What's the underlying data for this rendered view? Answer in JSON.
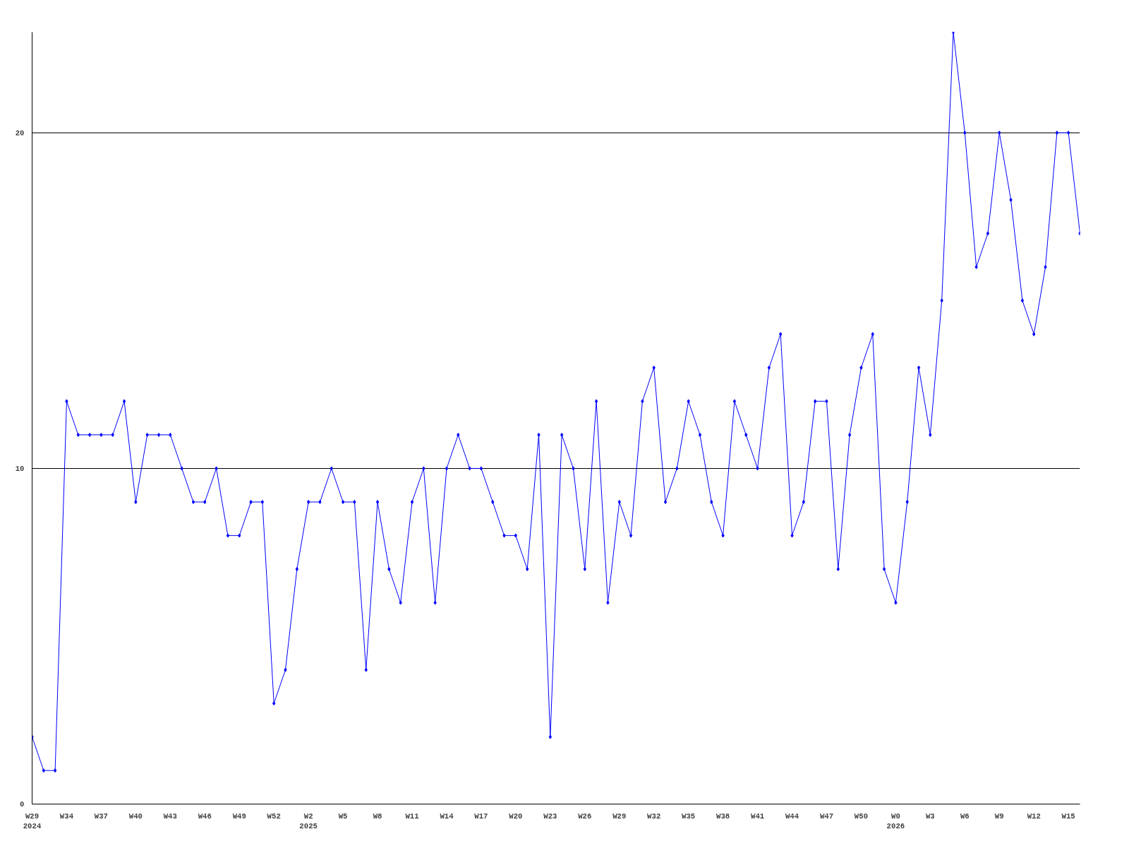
{
  "chart_data": {
    "type": "line",
    "categories": [
      "W29\n2024",
      null,
      null,
      "W34",
      null,
      null,
      "W37",
      null,
      null,
      "W40",
      null,
      null,
      "W43",
      null,
      null,
      "W46",
      null,
      null,
      "W49",
      null,
      null,
      "W52",
      null,
      null,
      "W2\n2025",
      null,
      null,
      "W5",
      null,
      null,
      "W8",
      null,
      null,
      "W11",
      null,
      null,
      "W14",
      null,
      null,
      "W17",
      null,
      null,
      "W20",
      null,
      null,
      "W23",
      null,
      null,
      "W26",
      null,
      null,
      "W29",
      null,
      null,
      "W32",
      null,
      null,
      "W35",
      null,
      null,
      "W38",
      null,
      null,
      "W41",
      null,
      null,
      "W44",
      null,
      null,
      "W47",
      null,
      null,
      "W50",
      null,
      null,
      "W0\n2026",
      null,
      null,
      "W3",
      null,
      null,
      "W6",
      null,
      null,
      "W9",
      null,
      null,
      "W12",
      null,
      null,
      "W15",
      null
    ],
    "series": [
      {
        "color": "#0000ff",
        "values": [
          2,
          1,
          1,
          12,
          11,
          11,
          11,
          11,
          12,
          9,
          11,
          11,
          11,
          10,
          9,
          9,
          10,
          8,
          8,
          9,
          9,
          3,
          4,
          7,
          9,
          9,
          10,
          9,
          9,
          4,
          9,
          7,
          6,
          9,
          10,
          6,
          10,
          11,
          10,
          10,
          9,
          8,
          8,
          7,
          11,
          2,
          11,
          10,
          7,
          12,
          6,
          9,
          8,
          12,
          13,
          9,
          10,
          12,
          11,
          9,
          8,
          12,
          11,
          10,
          13,
          14,
          8,
          9,
          12,
          12,
          7,
          11,
          13,
          14,
          7,
          6,
          9,
          13,
          11,
          15,
          23,
          20,
          16,
          17,
          20,
          18,
          15,
          14,
          16,
          20,
          20,
          17
        ]
      }
    ],
    "ylim": [
      0,
      23
    ],
    "yticks": [
      0,
      10,
      20
    ],
    "grid": "y",
    "marker": "diamond",
    "line_style": "solid"
  }
}
